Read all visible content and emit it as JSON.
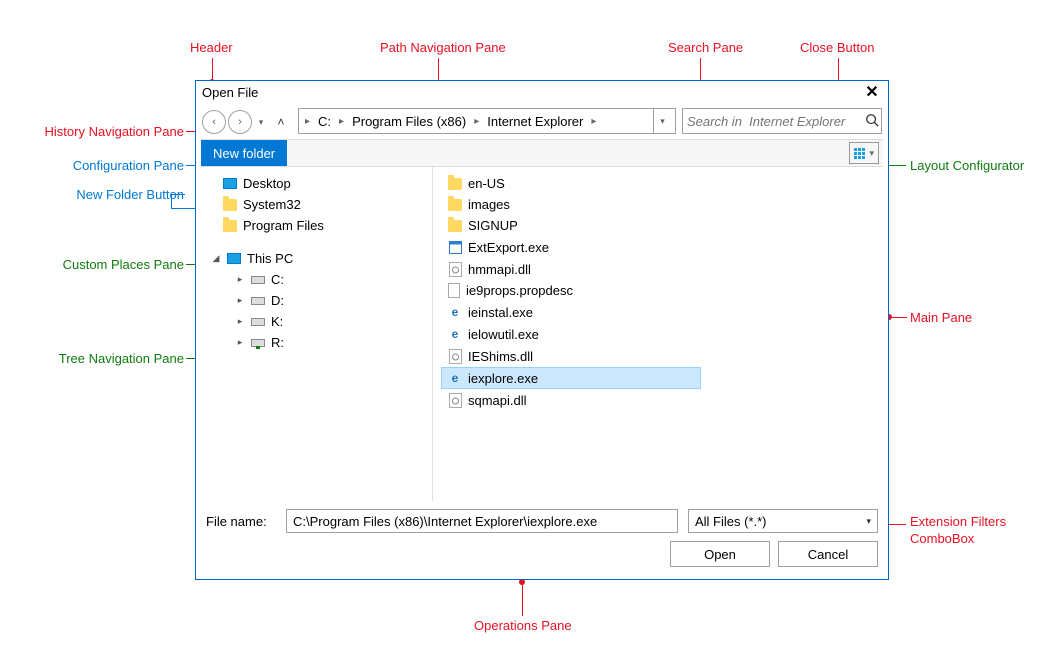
{
  "annotations": {
    "header": "Header",
    "path_nav": "Path Navigation Pane",
    "search_pane": "Search Pane",
    "close_btn": "Close Button",
    "history_nav": "History Navigation Pane",
    "config_pane": "Configuration Pane",
    "new_folder_btn": "New Folder Button",
    "layout_config": "Layout Configurator",
    "custom_places": "Custom Places Pane",
    "tree_nav": "Tree Navigation Pane",
    "main_pane": "Main Pane",
    "ops_pane": "Operations Pane",
    "ext_filter": "Extension Filters\nComboBox"
  },
  "colors": {
    "red": "#e81123",
    "green": "#107c10",
    "blue": "#0078d4",
    "dialog_border": "#0066cc",
    "accent": "#0078d4",
    "selection": "#cce8ff"
  },
  "dialog": {
    "title": "Open File",
    "path": {
      "crumbs": [
        "C:",
        "Program Files (x86)",
        "Internet Explorer"
      ]
    },
    "search_placeholder": "Search in  Internet Explorer",
    "new_folder_label": "New folder",
    "custom_places": [
      {
        "label": "Desktop",
        "icon": "desktop"
      },
      {
        "label": "System32",
        "icon": "folder"
      },
      {
        "label": "Program Files",
        "icon": "folder"
      }
    ],
    "tree": {
      "root_label": "This PC",
      "drives": [
        {
          "label": "C:",
          "net": false
        },
        {
          "label": "D:",
          "net": false
        },
        {
          "label": "K:",
          "net": false
        },
        {
          "label": "R:",
          "net": true
        }
      ]
    },
    "files": [
      {
        "name": "en-US",
        "type": "folder"
      },
      {
        "name": "images",
        "type": "folder"
      },
      {
        "name": "SIGNUP",
        "type": "folder"
      },
      {
        "name": "ExtExport.exe",
        "type": "exe-generic"
      },
      {
        "name": "hmmapi.dll",
        "type": "dll"
      },
      {
        "name": "ie9props.propdesc",
        "type": "doc"
      },
      {
        "name": "ieinstal.exe",
        "type": "ie"
      },
      {
        "name": "ielowutil.exe",
        "type": "ie"
      },
      {
        "name": "IEShims.dll",
        "type": "dll"
      },
      {
        "name": "iexplore.exe",
        "type": "ie",
        "selected": true
      },
      {
        "name": "sqmapi.dll",
        "type": "dll"
      }
    ],
    "ops": {
      "filename_label": "File name:",
      "filename_value": "C:\\Program Files (x86)\\Internet Explorer\\iexplore.exe",
      "filter_value": "All Files (*.*)",
      "open_label": "Open",
      "cancel_label": "Cancel"
    }
  }
}
